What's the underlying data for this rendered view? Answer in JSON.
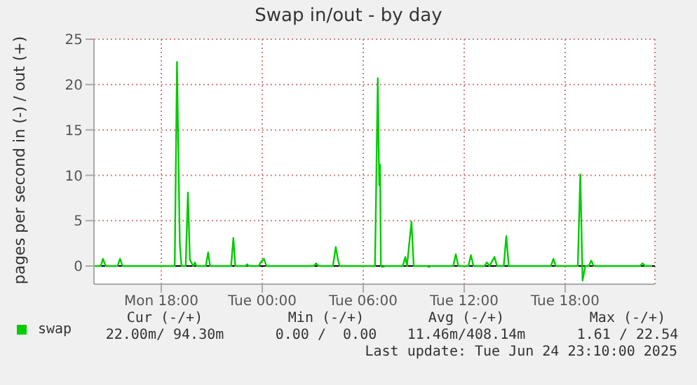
{
  "chart_data": {
    "type": "line",
    "title": "Swap in/out - by day",
    "ylabel": "pages per second in (-) / out (+)",
    "xlim": [
      "2025-06-23T14:00",
      "2025-06-24T23:20"
    ],
    "xticks": [
      {
        "value": "2025-06-23T18:00",
        "label": "Mon 18:00"
      },
      {
        "value": "2025-06-24T00:00",
        "label": "Tue 00:00"
      },
      {
        "value": "2025-06-24T06:00",
        "label": "Tue 06:00"
      },
      {
        "value": "2025-06-24T12:00",
        "label": "Tue 12:00"
      },
      {
        "value": "2025-06-24T18:00",
        "label": "Tue 18:00"
      }
    ],
    "ylim": [
      -2,
      25
    ],
    "yticks": [
      0,
      5,
      10,
      15,
      20,
      25
    ],
    "grid": true,
    "legend": "bottom",
    "ref_lines": [
      {
        "axis": "y",
        "value": 0,
        "color": "#000000"
      }
    ],
    "series": [
      {
        "name": "swap",
        "color": "#00cc00",
        "x": [
          "2025-06-23T14:00",
          "2025-06-23T14:24",
          "2025-06-23T14:32",
          "2025-06-23T14:42",
          "2025-06-23T15:24",
          "2025-06-23T15:33",
          "2025-06-23T15:42",
          "2025-06-23T18:48",
          "2025-06-23T18:56",
          "2025-06-23T19:06",
          "2025-06-23T19:12",
          "2025-06-23T19:27",
          "2025-06-23T19:35",
          "2025-06-23T19:42",
          "2025-06-23T19:54",
          "2025-06-23T20:00",
          "2025-06-23T20:06",
          "2025-06-23T20:39",
          "2025-06-23T20:47",
          "2025-06-23T20:54",
          "2025-06-23T22:09",
          "2025-06-23T22:17",
          "2025-06-23T22:24",
          "2025-06-23T23:00",
          "2025-06-23T23:06",
          "2025-06-23T23:12",
          "2025-06-23T23:48",
          "2025-06-23T23:54",
          "2025-06-24T00:06",
          "2025-06-24T00:15",
          "2025-06-24T03:03",
          "2025-06-24T03:12",
          "2025-06-24T03:21",
          "2025-06-24T04:12",
          "2025-06-24T04:22",
          "2025-06-24T04:30",
          "2025-06-24T04:36",
          "2025-06-24T04:42",
          "2025-06-24T06:42",
          "2025-06-24T06:52",
          "2025-06-24T06:57",
          "2025-06-24T07:00",
          "2025-06-24T07:03",
          "2025-06-24T07:09",
          "2025-06-24T07:18",
          "2025-06-24T08:21",
          "2025-06-24T08:30",
          "2025-06-24T08:36",
          "2025-06-24T08:52",
          "2025-06-24T09:00",
          "2025-06-24T09:48",
          "2025-06-24T09:54",
          "2025-06-24T10:00",
          "2025-06-24T11:21",
          "2025-06-24T11:30",
          "2025-06-24T11:39",
          "2025-06-24T12:15",
          "2025-06-24T12:24",
          "2025-06-24T12:33",
          "2025-06-24T13:12",
          "2025-06-24T13:21",
          "2025-06-24T13:30",
          "2025-06-24T13:48",
          "2025-06-24T13:57",
          "2025-06-24T14:21",
          "2025-06-24T14:30",
          "2025-06-24T14:39",
          "2025-06-24T17:09",
          "2025-06-24T17:18",
          "2025-06-24T17:27",
          "2025-06-24T18:45",
          "2025-06-24T18:54",
          "2025-06-24T19:02",
          "2025-06-24T19:12",
          "2025-06-24T19:24",
          "2025-06-24T19:33",
          "2025-06-24T19:42",
          "2025-06-24T22:27",
          "2025-06-24T22:36",
          "2025-06-24T22:45",
          "2025-06-24T23:10"
        ],
        "values": [
          0,
          0,
          0.8,
          0,
          0,
          0.8,
          0,
          0,
          22.5,
          2.5,
          0,
          0,
          8.1,
          0.7,
          0,
          0.4,
          0,
          0,
          1.5,
          0,
          0,
          3.1,
          0,
          0,
          0.2,
          0,
          0,
          0.4,
          0.8,
          0,
          0,
          0.3,
          0,
          0,
          2.1,
          0.7,
          0,
          0,
          0,
          20.7,
          8.9,
          11.2,
          0,
          -0.1,
          0,
          0,
          1.0,
          0,
          4.9,
          0,
          0,
          -0.1,
          0,
          0,
          1.3,
          0,
          0,
          1.2,
          0,
          0,
          0.4,
          0,
          1.0,
          0,
          0,
          3.3,
          0,
          0,
          0.8,
          0,
          0,
          10.1,
          -1.6,
          0,
          0,
          0.6,
          0,
          0,
          0.3,
          0,
          0
        ]
      }
    ],
    "annotations": [
      "Cur (-/+)",
      "Min (-/+)",
      "Avg (-/+)",
      "Max (-/+)",
      "22.00m/ 94.30m",
      "0.00 /  0.00",
      "11.46m/408.14m",
      "1.61 / 22.54",
      "Last update: Tue Jun 24 23:10:00 2025"
    ]
  }
}
